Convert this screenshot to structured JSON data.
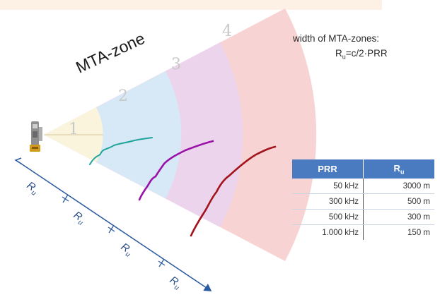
{
  "diagram": {
    "mta_label": "MTA-zone",
    "zones": [
      {
        "number": "1",
        "fill": "#fbf4dd"
      },
      {
        "number": "2",
        "fill": "#d7e9f6"
      },
      {
        "number": "3",
        "fill": "#ecd5ec"
      },
      {
        "number": "4",
        "fill": "#f7d3d3"
      }
    ],
    "trace_colors": [
      "#1fa49a",
      "#9a12a8",
      "#a3131b"
    ],
    "axis_color": "#2c5aa0",
    "ru_label": "R",
    "ru_subscript": "u"
  },
  "formula": {
    "line1": "width of MTA-zones:",
    "line2_main": "R",
    "line2_sub": "u",
    "line2_rest": "=c/2·PRR"
  },
  "table": {
    "header_prr": "PRR",
    "header_ru_main": "R",
    "header_ru_sub": "u",
    "header_color": "#4a7ac0",
    "rows": [
      {
        "prr": "50 kHz",
        "ru": "3000 m"
      },
      {
        "prr": "300 kHz",
        "ru": "500 m"
      },
      {
        "prr": "500 kHz",
        "ru": "300 m"
      },
      {
        "prr": "1.000 kHz",
        "ru": "150 m"
      }
    ]
  }
}
